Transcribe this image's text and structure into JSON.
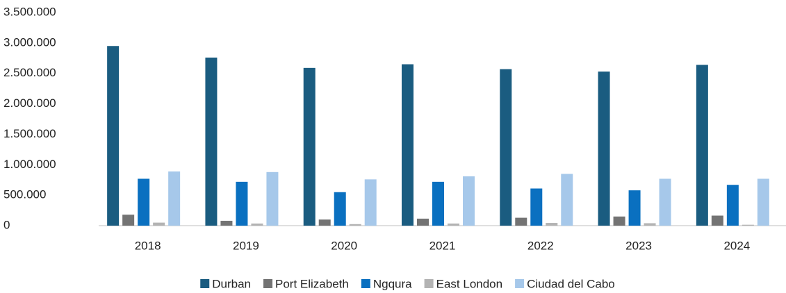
{
  "chart_data": {
    "type": "bar",
    "categories": [
      "2018",
      "2019",
      "2020",
      "2021",
      "2022",
      "2023",
      "2024"
    ],
    "series": [
      {
        "name": "Durban",
        "color": "#1a5c80",
        "values": [
          2950000,
          2760000,
          2590000,
          2650000,
          2570000,
          2530000,
          2640000
        ]
      },
      {
        "name": "Port Elizabeth",
        "color": "#737373",
        "values": [
          180000,
          80000,
          100000,
          115000,
          130000,
          150000,
          165000
        ]
      },
      {
        "name": "Ngqura",
        "color": "#0a70c0",
        "values": [
          770000,
          720000,
          550000,
          720000,
          610000,
          580000,
          670000
        ]
      },
      {
        "name": "East London",
        "color": "#b3b3b3",
        "values": [
          50000,
          35000,
          25000,
          35000,
          45000,
          40000,
          15000
        ]
      },
      {
        "name": "Ciudad del Cabo",
        "color": "#a6c8ea",
        "values": [
          890000,
          880000,
          760000,
          810000,
          850000,
          770000,
          770000
        ]
      }
    ],
    "ylim": [
      0,
      3500000
    ],
    "yticks": [
      0,
      {
        "value": 500000,
        "label": "500.000"
      },
      {
        "value": 1000000,
        "label": "1.000.000"
      },
      {
        "value": 1500000,
        "label": "1.500.000"
      },
      {
        "value": 2000000,
        "label": "2.000.000"
      },
      {
        "value": 2500000,
        "label": "2.500.000"
      },
      {
        "value": 3000000,
        "label": "3.000.000"
      },
      {
        "value": 3500000,
        "label": "3.500.000"
      }
    ],
    "grid": false,
    "legend": "bottom"
  }
}
